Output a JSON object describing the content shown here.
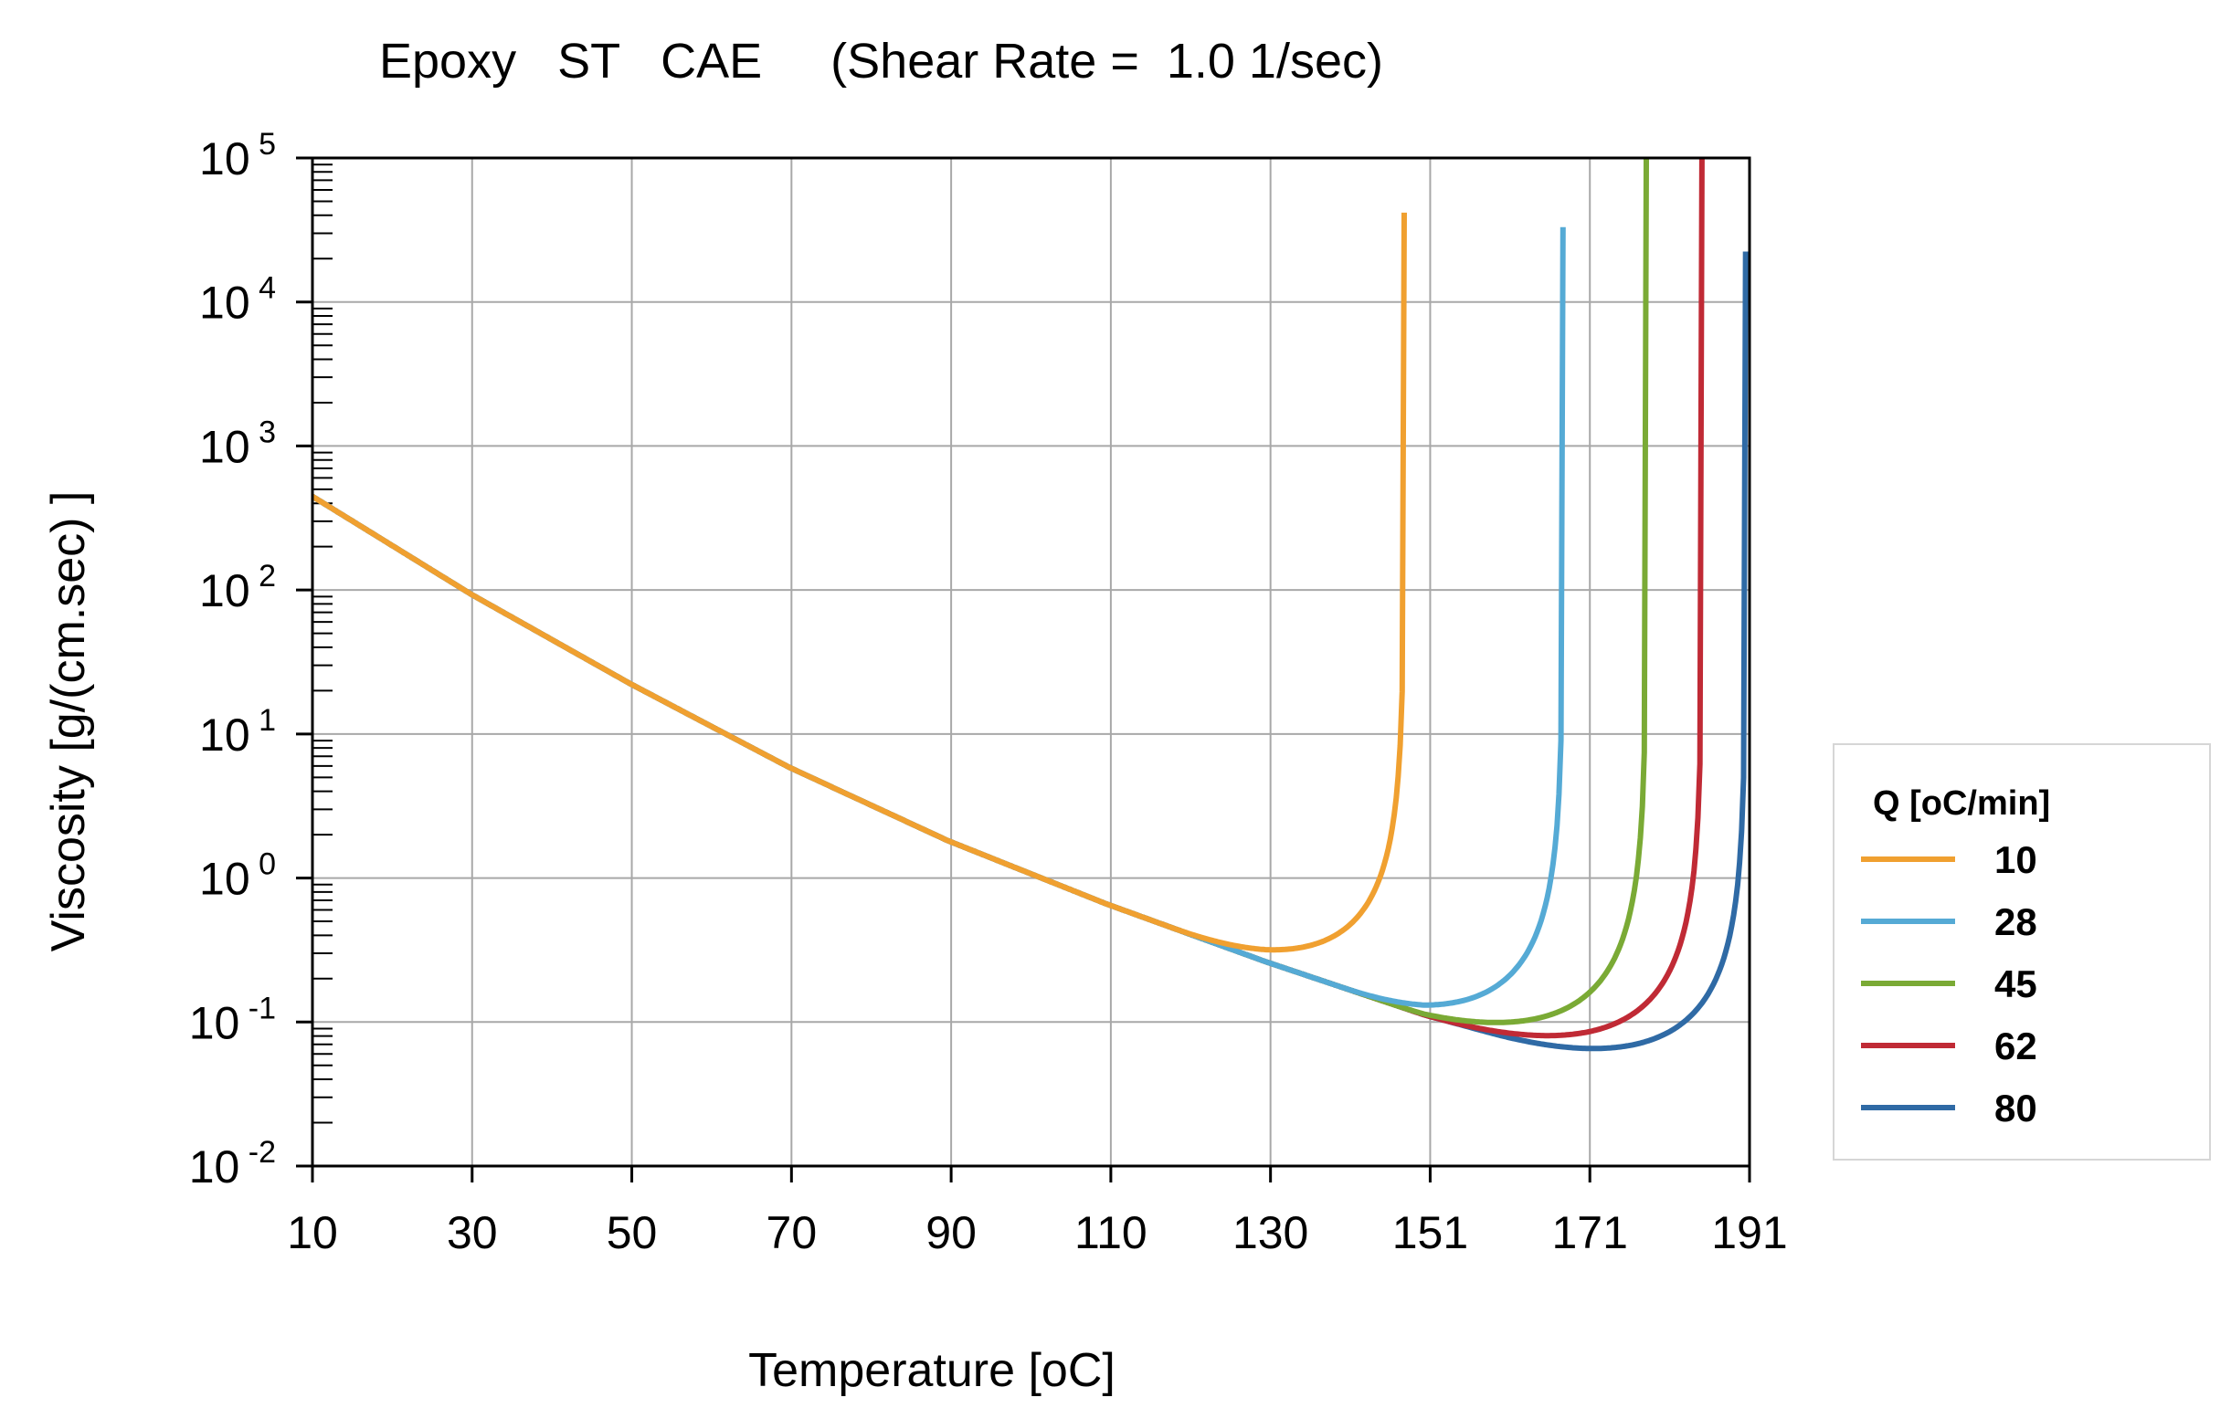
{
  "chart_data": {
    "type": "line",
    "title": "Epoxy   ST   CAE     (Shear Rate =  1.0 1/sec)",
    "xlabel": "Temperature [oC]",
    "ylabel": "Viscosity [g/(cm.sec) ]",
    "x_ticks": [
      "10",
      "30",
      "50",
      "70",
      "90",
      "110",
      "130",
      "151",
      "171",
      "191"
    ],
    "xlim": [
      10,
      191
    ],
    "ylim_log10": [
      -2,
      5
    ],
    "y_scale": "log",
    "y_tick_exponents": [
      "5",
      "4",
      "3",
      "2",
      "1",
      "0",
      "-1",
      "-2"
    ],
    "y_tick_base": "10",
    "legend": {
      "title": "Q [oC/min]",
      "position": "right"
    },
    "base_curve": {
      "description_points_log10": [
        [
          10,
          2.65
        ],
        [
          30,
          1.97
        ],
        [
          50,
          1.35
        ],
        [
          70,
          0.77
        ],
        [
          90,
          0.26
        ],
        [
          110,
          -0.18
        ],
        [
          130,
          -0.58
        ],
        [
          150,
          -0.95
        ],
        [
          170,
          -1.25
        ]
      ]
    },
    "series": [
      {
        "name": "10",
        "color": "#f0a030",
        "min_T": 129,
        "min_log10": -0.5,
        "end_T": 147.5,
        "end_log10": 4.62
      },
      {
        "name": "28",
        "color": "#55aad5",
        "min_T": 150,
        "min_log10": -0.83,
        "end_T": 167.5,
        "end_log10": 4.52
      },
      {
        "name": "45",
        "color": "#7aaa35",
        "min_T": 158,
        "min_log10": -1.0,
        "end_T": 178.0,
        "end_log10": 5.0
      },
      {
        "name": "62",
        "color": "#c02a35",
        "min_T": 164,
        "min_log10": -1.1,
        "end_T": 185.0,
        "end_log10": 5.0
      },
      {
        "name": "80",
        "color": "#2f6aa5",
        "min_T": 170,
        "min_log10": -1.2,
        "end_T": 190.5,
        "end_log10": 4.35
      }
    ]
  }
}
